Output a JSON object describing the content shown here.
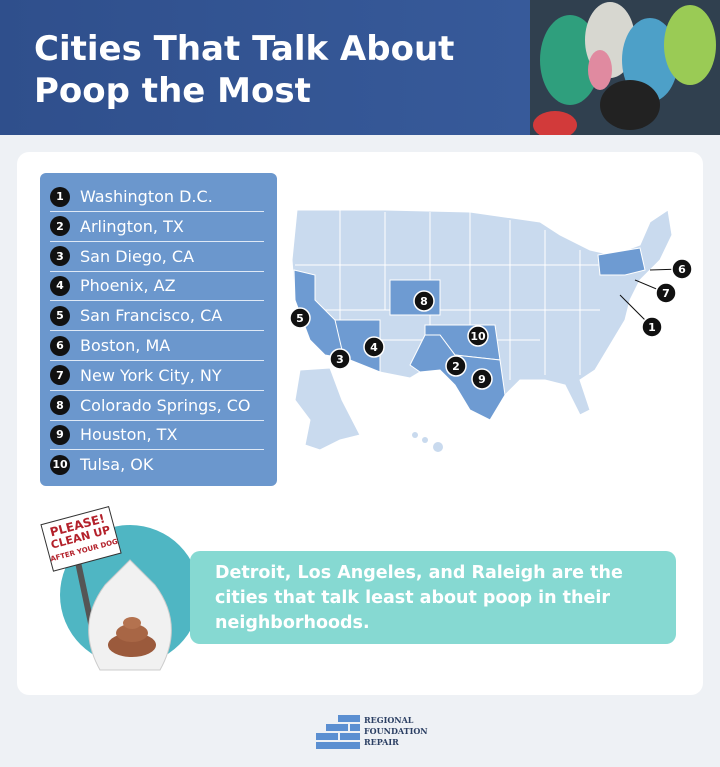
{
  "header": {
    "title": "Cities That Talk About Poop the Most"
  },
  "list": {
    "items": [
      {
        "rank": 1,
        "name": "Washington D.C."
      },
      {
        "rank": 2,
        "name": "Arlington, TX"
      },
      {
        "rank": 3,
        "name": "San Diego, CA"
      },
      {
        "rank": 4,
        "name": "Phoenix, AZ"
      },
      {
        "rank": 5,
        "name": "San Francisco, CA"
      },
      {
        "rank": 6,
        "name": "Boston, MA"
      },
      {
        "rank": 7,
        "name": "New York City, NY"
      },
      {
        "rank": 8,
        "name": "Colorado Springs, CO"
      },
      {
        "rank": 9,
        "name": "Houston, TX"
      },
      {
        "rank": 10,
        "name": "Tulsa, OK"
      }
    ]
  },
  "sign": {
    "lines": [
      "PLEASE!",
      "CLEAN UP",
      "AFTER YOUR DOG"
    ]
  },
  "callout": {
    "text": "Detroit, Los Angeles, and Raleigh are the cities that talk least about poop in their neighborhoods."
  },
  "logo": {
    "lines": [
      "REGIONAL",
      "FOUNDATION",
      "REPAIR"
    ]
  }
}
